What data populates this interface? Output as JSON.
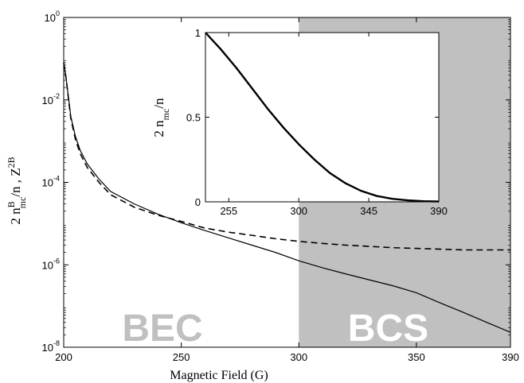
{
  "chart_data": [
    {
      "type": "line",
      "xlabel": "Magnetic Field (G)",
      "ylabel": {
        "base": "2 n",
        "sup": "B",
        "sub": "mc",
        "mid": "/n ,  Z",
        "sup2": "2B"
      },
      "xlim": [
        200,
        390
      ],
      "ylim": [
        1e-08,
        1
      ],
      "yscale": "log",
      "grid": false,
      "x_ticks": [
        200,
        250,
        300,
        350,
        390
      ],
      "y_ticks": [
        {
          "value": 1,
          "base": "10",
          "exp": "0"
        },
        {
          "value": 0.01,
          "base": "10",
          "exp": "-2"
        },
        {
          "value": 0.0001,
          "base": "10",
          "exp": "-4"
        },
        {
          "value": 1e-06,
          "base": "10",
          "exp": "-6"
        },
        {
          "value": 1e-08,
          "base": "10",
          "exp": "-8"
        }
      ],
      "shaded_region": {
        "x": [
          300,
          390
        ],
        "color": "#c0c0c0"
      },
      "region_labels": [
        {
          "text": "BEC",
          "x": 242,
          "y": 3e-08,
          "color": "#c0c0c0"
        },
        {
          "text": "BCS",
          "x": 338,
          "y": 3e-08,
          "color": "#ffffff"
        }
      ],
      "series": [
        {
          "style": "solid",
          "color": "#000000",
          "x": [
            200,
            201,
            202,
            203,
            205,
            207,
            210,
            215,
            220,
            230,
            240,
            250,
            260,
            270,
            280,
            290,
            300,
            310,
            320,
            330,
            340,
            350,
            360,
            370,
            380,
            390
          ],
          "y": [
            0.08,
            0.035,
            0.012,
            0.004,
            0.0013,
            0.0006,
            0.00028,
            0.00012,
            6e-05,
            3e-05,
            1.7e-05,
            1.05e-05,
            6.8e-06,
            4.5e-06,
            3e-06,
            2e-06,
            1.25e-06,
            8.5e-07,
            6e-07,
            4.3e-07,
            3.1e-07,
            2.1e-07,
            1.2e-07,
            7e-08,
            4e-08,
            2.3e-08
          ]
        },
        {
          "style": "dashed",
          "color": "#000000",
          "x": [
            200,
            201,
            202,
            203,
            205,
            207,
            210,
            215,
            220,
            230,
            240,
            250,
            260,
            270,
            280,
            290,
            300,
            310,
            320,
            330,
            340,
            350,
            360,
            370,
            380,
            390
          ],
          "y": [
            0.08,
            0.034,
            0.011,
            0.0036,
            0.0011,
            0.0005,
            0.00023,
            0.0001,
            5e-05,
            2.5e-05,
            1.6e-05,
            1.13e-05,
            7.8e-06,
            6.2e-06,
            5.2e-06,
            4.3e-06,
            3.7e-06,
            3.3e-06,
            3e-06,
            2.8e-06,
            2.6e-06,
            2.5e-06,
            2.4e-06,
            2.3e-06,
            2.3e-06,
            2.3e-06
          ]
        }
      ]
    },
    {
      "type": "line",
      "inset": true,
      "ylabel": {
        "base": "2 n",
        "sub": "mc",
        "mid": "/n"
      },
      "xlabel": "",
      "xlim": [
        240,
        390
      ],
      "ylim": [
        0,
        1
      ],
      "grid": false,
      "x_ticks": [
        255,
        300,
        345,
        390
      ],
      "y_ticks": [
        0,
        0.5,
        1
      ],
      "series": [
        {
          "style": "solid",
          "color": "#000000",
          "x": [
            240,
            250,
            260,
            270,
            280,
            290,
            300,
            310,
            320,
            330,
            340,
            350,
            360,
            370,
            380,
            390
          ],
          "y": [
            1.0,
            0.9,
            0.79,
            0.67,
            0.55,
            0.44,
            0.34,
            0.25,
            0.17,
            0.11,
            0.065,
            0.035,
            0.018,
            0.009,
            0.004,
            0.002
          ]
        }
      ]
    }
  ]
}
